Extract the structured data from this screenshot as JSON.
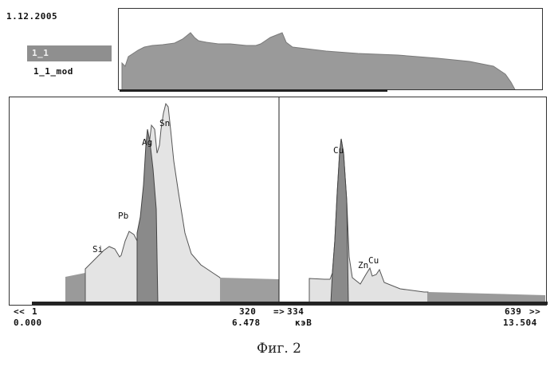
{
  "date": "1.12.2005",
  "legend": {
    "selected": "1_1",
    "second": "1_1_mod"
  },
  "axis": {
    "left_arrow": "<<",
    "left_channel": "1",
    "left_energy": "0.000",
    "cursor_channel": "320",
    "cursor_energy": "6.478",
    "cursor_arrow": "=>",
    "marker_channel": "334",
    "unit": "кэВ",
    "right_channel": "639",
    "right_energy": "13.504",
    "right_arrow": ">>"
  },
  "peaks": [
    "Si",
    "Pb",
    "Ag",
    "Sn",
    "Cu",
    "Zn",
    "Cu"
  ],
  "caption": "Фиг. 2",
  "colors": {
    "panel_border": "#333333",
    "spectrum_light": "#e2e2e2",
    "spectrum_dark": "#8a8a8a",
    "legend_bg": "#8f8f8f"
  }
}
